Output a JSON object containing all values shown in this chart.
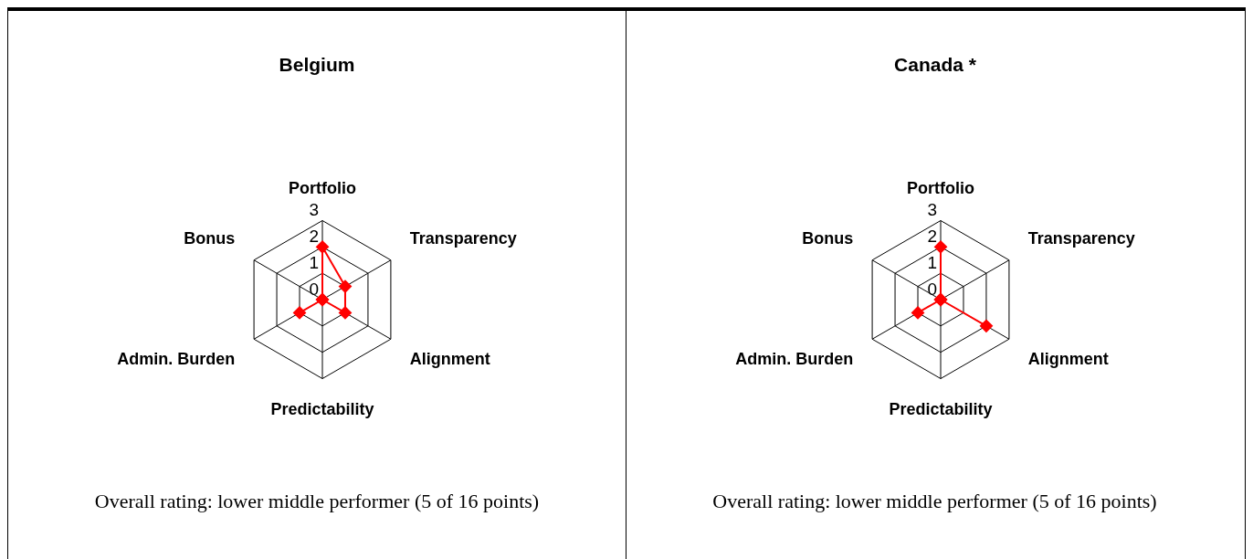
{
  "chart_data": [
    {
      "type": "radar",
      "title": "Belgium",
      "categories": [
        "Portfolio",
        "Transparency",
        "Alignment",
        "Predictability",
        "Admin. Burden",
        "Bonus"
      ],
      "series": [
        {
          "color": "#ff0000",
          "values": [
            2,
            1,
            1,
            0,
            1,
            0
          ]
        }
      ],
      "ylim": [
        0,
        3
      ],
      "yticks": [
        0,
        1,
        2,
        3
      ],
      "grid": true,
      "marker": "diamond",
      "annotations": [
        "Overall rating: lower middle performer (5 of 16 points)"
      ]
    },
    {
      "type": "radar",
      "title": "Canada *",
      "categories": [
        "Portfolio",
        "Transparency",
        "Alignment",
        "Predictability",
        "Admin. Burden",
        "Bonus"
      ],
      "series": [
        {
          "color": "#ff0000",
          "values": [
            2,
            0,
            2,
            0,
            1,
            0
          ]
        }
      ],
      "ylim": [
        0,
        3
      ],
      "yticks": [
        0,
        1,
        2,
        3
      ],
      "grid": true,
      "marker": "diamond",
      "annotations": [
        "Overall rating: lower middle performer (5 of 16 points)"
      ]
    }
  ]
}
